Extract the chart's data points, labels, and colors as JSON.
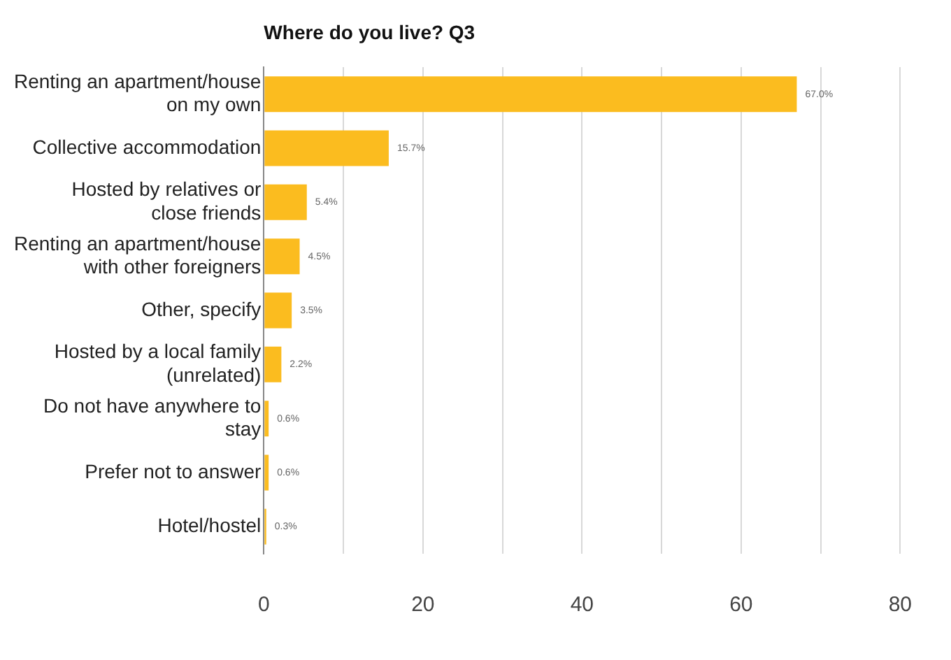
{
  "chart_data": {
    "type": "bar",
    "orientation": "horizontal",
    "title": "Where do you live? Q3",
    "categories": [
      "Renting an apartment/house on my own",
      "Collective accommodation",
      "Hosted by relatives or close friends",
      "Renting an apartment/house with other foreigners",
      "Other, specify",
      "Hosted by a local family (unrelated)",
      "Do not have anywhere to stay",
      "Prefer not to answer",
      "Hotel/hostel"
    ],
    "values": [
      67.0,
      15.7,
      5.4,
      4.5,
      3.5,
      2.2,
      0.6,
      0.6,
      0.3
    ],
    "value_labels": [
      "67.0%",
      "15.7%",
      "5.4%",
      "4.5%",
      "3.5%",
      "2.2%",
      "0.6%",
      "0.6%",
      "0.3%"
    ],
    "color": "#fbbc1f",
    "xlim": [
      0,
      80
    ],
    "xticks": [
      0,
      {
        "value": 10,
        "label": null
      },
      20,
      {
        "value": 30,
        "label": null
      },
      40,
      {
        "value": 50,
        "label": null
      },
      60,
      {
        "value": 70,
        "label": null
      },
      80
    ],
    "grid": "x",
    "legend": false
  }
}
